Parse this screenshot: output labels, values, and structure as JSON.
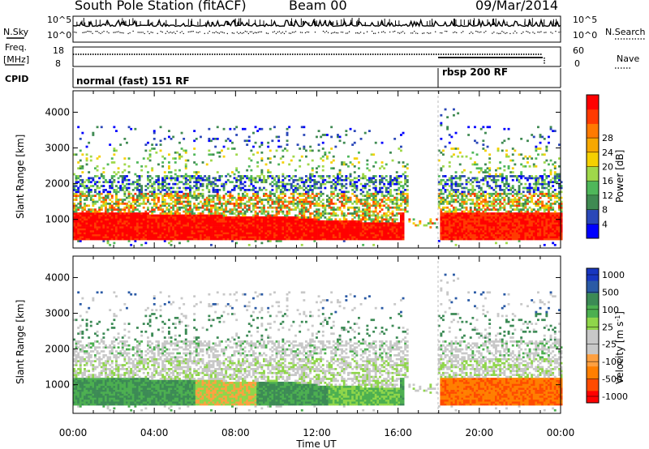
{
  "header": {
    "title": "South Pole Station (fitACF)",
    "beam": "Beam 00",
    "date": "09/Mar/2014"
  },
  "panel_labels": {
    "nsky": "N.Sky",
    "nsearch": "N.Search",
    "freq": "Freq.",
    "freq_unit": "[MHz]",
    "nave": "Nave",
    "cpid": "CPID"
  },
  "cpid_modes": {
    "mode1": "normal (fast) 151 RF",
    "mode2": "rbsp 200 RF"
  },
  "colors": {
    "power": [
      "#0000ff",
      "#2a47b8",
      "#3f8a52",
      "#4fb75a",
      "#9fd84a",
      "#f5d000",
      "#f7a800",
      "#ff7a00",
      "#ff3a00",
      "#ff0000"
    ],
    "velocity": [
      "#ff0000",
      "#ff4b00",
      "#ff7f00",
      "#ffa040",
      "#c8c8c8",
      "#c8c8c8",
      "#8fd64a",
      "#4caf50",
      "#3c8a55",
      "#2a5aa5",
      "#1836c0"
    ]
  },
  "chart_data": [
    {
      "type": "line",
      "panel": "noise",
      "left_label": "N.Sky",
      "right_label": "N.Search",
      "left_ticks": [
        "10^5",
        "10^0"
      ],
      "right_ticks": [
        "10^5",
        "10^0"
      ]
    },
    {
      "type": "line",
      "panel": "frequency / nave",
      "left_label": "Freq. [MHz]",
      "left_ticks": [
        "18",
        "8"
      ],
      "right_label": "Nave",
      "right_ticks": [
        "60",
        "0"
      ]
    },
    {
      "type": "heatmap",
      "panel": "power",
      "ylabel": "Slant Range [km]",
      "yticks": [
        1000,
        2000,
        3000,
        4000
      ],
      "ylim": [
        200,
        4600
      ],
      "xlabel": "Time UT",
      "xticks": [
        "00:00",
        "04:00",
        "08:00",
        "12:00",
        "16:00",
        "20:00",
        "00:00"
      ],
      "xlim_hours": [
        0,
        24
      ],
      "colorbar_label": "Power [dB]",
      "colorbar_ticks": [
        4,
        8,
        12,
        16,
        20,
        24,
        28
      ]
    },
    {
      "type": "heatmap",
      "panel": "velocity",
      "ylabel": "Slant Range [km]",
      "yticks": [
        1000,
        2000,
        3000,
        4000
      ],
      "ylim": [
        200,
        4600
      ],
      "xlabel": "Time UT",
      "xticks": [
        "00:00",
        "04:00",
        "08:00",
        "12:00",
        "16:00",
        "20:00",
        "00:00"
      ],
      "xlim_hours": [
        0,
        24
      ],
      "colorbar_label": "Velocity [m s-1]",
      "colorbar_ticks": [
        1000,
        500,
        100,
        25,
        -25,
        -100,
        -500,
        -1000
      ]
    }
  ],
  "xaxis": {
    "label": "Time UT",
    "ticks": [
      "00:00",
      "04:00",
      "08:00",
      "12:00",
      "16:00",
      "20:00",
      "00:00"
    ]
  }
}
